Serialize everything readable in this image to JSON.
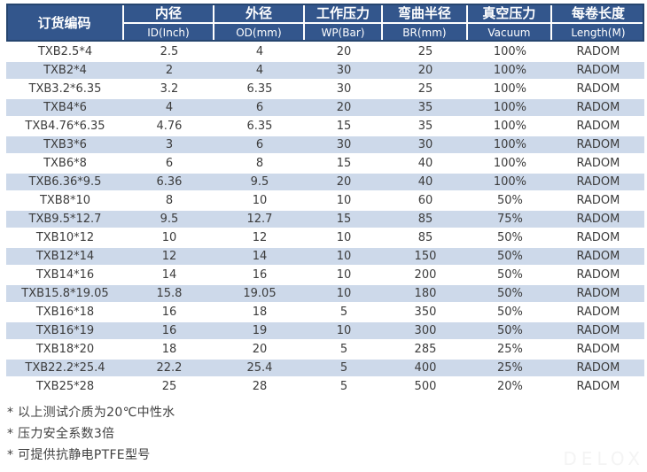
{
  "colors": {
    "header_bg": "#33568C",
    "header_border": "#26456F",
    "row_stripe": "#CDD9EA",
    "body_text": "#3C3C3C"
  },
  "table": {
    "code_header": "订货编码",
    "columns": [
      {
        "zh": "内径",
        "en": "ID(Inch)"
      },
      {
        "zh": "外径",
        "en": "OD(mm)"
      },
      {
        "zh": "工作压力",
        "en": "WP(Bar)"
      },
      {
        "zh": "弯曲半径",
        "en": "BR(mm)"
      },
      {
        "zh": "真空压力",
        "en": "Vacuum"
      },
      {
        "zh": "每卷长度",
        "en": "Length(M)"
      }
    ],
    "rows": [
      [
        "TXB2.5*4",
        "2.5",
        "4",
        "20",
        "25",
        "100%",
        "RADOM"
      ],
      [
        "TXB2*4",
        "2",
        "4",
        "30",
        "20",
        "100%",
        "RADOM"
      ],
      [
        "TXB3.2*6.35",
        "3.2",
        "6.35",
        "30",
        "25",
        "100%",
        "RADOM"
      ],
      [
        "TXB4*6",
        "4",
        "6",
        "20",
        "35",
        "100%",
        "RADOM"
      ],
      [
        "TXB4.76*6.35",
        "4.76",
        "6.35",
        "15",
        "35",
        "100%",
        "RADOM"
      ],
      [
        "TXB3*6",
        "3",
        "6",
        "30",
        "30",
        "100%",
        "RADOM"
      ],
      [
        "TXB6*8",
        "6",
        "8",
        "15",
        "40",
        "100%",
        "RADOM"
      ],
      [
        "TXB6.36*9.5",
        "6.36",
        "9.5",
        "20",
        "40",
        "100%",
        "RADOM"
      ],
      [
        "TXB8*10",
        "8",
        "10",
        "10",
        "60",
        "50%",
        "RADOM"
      ],
      [
        "TXB9.5*12.7",
        "9.5",
        "12.7",
        "15",
        "85",
        "75%",
        "RADOM"
      ],
      [
        "TXB10*12",
        "10",
        "12",
        "10",
        "85",
        "50%",
        "RADOM"
      ],
      [
        "TXB12*14",
        "12",
        "14",
        "10",
        "150",
        "50%",
        "RADOM"
      ],
      [
        "TXB14*16",
        "14",
        "16",
        "10",
        "200",
        "50%",
        "RADOM"
      ],
      [
        "TXB15.8*19.05",
        "15.8",
        "19.05",
        "10",
        "180",
        "50%",
        "RADOM"
      ],
      [
        "TXB16*18",
        "16",
        "18",
        "5",
        "350",
        "50%",
        "RADOM"
      ],
      [
        "TXB16*19",
        "16",
        "19",
        "10",
        "300",
        "50%",
        "RADOM"
      ],
      [
        "TXB18*20",
        "18",
        "20",
        "5",
        "285",
        "25%",
        "RADOM"
      ],
      [
        "TXB22.2*25.4",
        "22.2",
        "25.4",
        "5",
        "400",
        "25%",
        "RADOM"
      ],
      [
        "TXB25*28",
        "25",
        "28",
        "5",
        "500",
        "20%",
        "RADOM"
      ]
    ]
  },
  "notes": [
    "* 以上测试介质为20℃中性水",
    "* 压力安全系数3倍",
    "* 可提供抗静电PTFE型号"
  ],
  "watermark": "DELOX"
}
